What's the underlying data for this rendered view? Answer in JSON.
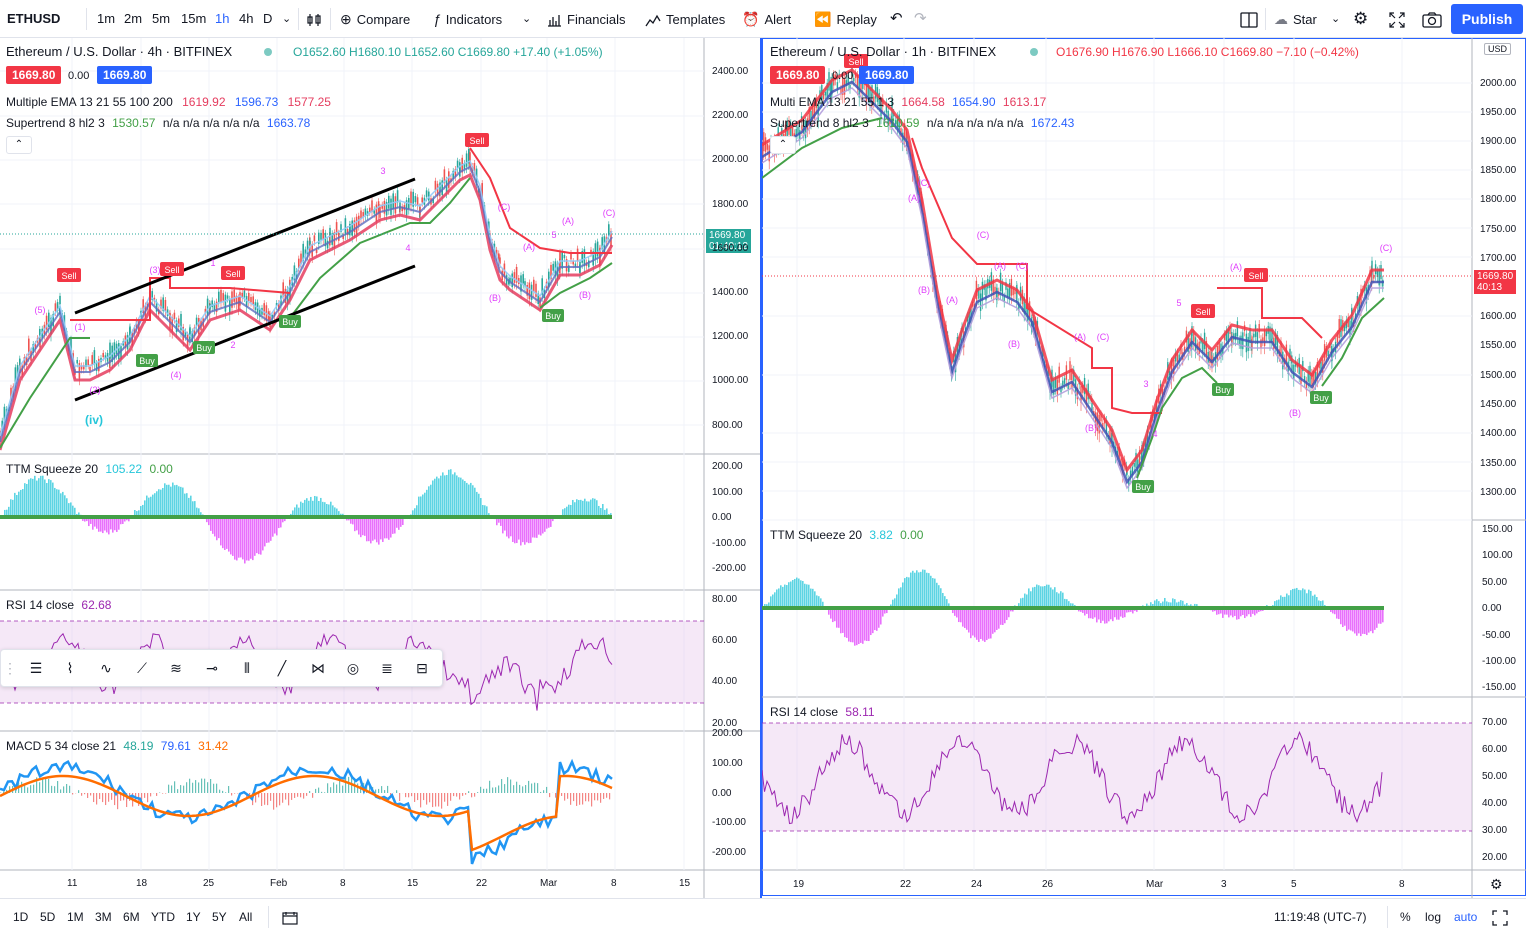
{
  "toolbar": {
    "symbol": "ETHUSD",
    "intervals": [
      "1m",
      "2m",
      "5m",
      "15m",
      "1h",
      "4h",
      "D"
    ],
    "active_interval": "1h",
    "compare": "Compare",
    "indicators": "Indicators",
    "financials": "Financials",
    "templates": "Templates",
    "alert": "Alert",
    "replay": "Replay",
    "star": "Star",
    "publish": "Publish"
  },
  "left_chart": {
    "title": "Ethereum / U.S. Dollar · 4h · BITFINEX",
    "ohlc": "O1652.60 H1680.10 L1652.60 C1669.80 +17.40 (+1.05%)",
    "badge_sell": "1669.80",
    "badge_spread": "0.00",
    "badge_buy": "1669.80",
    "ema_name": "Multiple EMA 13 21 55 100 200",
    "ema_v1": "1619.92",
    "ema_v2": "1596.73",
    "ema_v3": "1577.25",
    "st_name": "Supertrend 8 hl2 3",
    "st_v1": "1530.57",
    "st_na": "n/a n/a n/a n/a n/a",
    "st_v2": "1663.78",
    "price_ticks": [
      "2400.00",
      "2200.00",
      "2000.00",
      "1800.00",
      "1600.00",
      "1400.00",
      "1200.00",
      "1000.00",
      "800.00"
    ],
    "last_price": "1669.80",
    "countdown": "01:40:12",
    "ttm_name": "TTM Squeeze 20",
    "ttm_v1": "105.22",
    "ttm_v2": "0.00",
    "ttm_ticks": [
      "200.00",
      "100.00",
      "0.00",
      "-100.00",
      "-200.00"
    ],
    "rsi_name": "RSI 14 close",
    "rsi_v": "62.68",
    "rsi_ticks": [
      "80.00",
      "60.00",
      "40.00",
      "20.00"
    ],
    "macd_name": "MACD 5 34 close 21",
    "macd_v1": "48.19",
    "macd_v2": "79.61",
    "macd_v3": "31.42",
    "macd_ticks": [
      "200.00",
      "100.00",
      "0.00",
      "-100.00",
      "-200.00"
    ],
    "time_ticks": [
      "11",
      "18",
      "25",
      "Feb",
      "8",
      "15",
      "22",
      "Mar",
      "8",
      "15"
    ],
    "wave_labels": [
      "(5)",
      "(1)",
      "(2)",
      "(3)",
      "(4)",
      "(iv)",
      "1",
      "2",
      "3",
      "4",
      "5",
      "(A)",
      "(B)",
      "(C)",
      "Sell",
      "Buy"
    ]
  },
  "right_chart": {
    "title": "Ethereum / U.S. Dollar · 1h · BITFINEX",
    "ohlc": "O1676.90 H1676.90 L1666.10 C1669.80 −7.10 (−0.42%)",
    "badge_sell": "1669.80",
    "badge_spread": "0.00",
    "badge_buy": "1669.80",
    "ema_name": "Multi EMA 13 21 55 1 3",
    "ema_v1": "1664.58",
    "ema_v2": "1654.90",
    "ema_v3": "1613.17",
    "st_name": "Supertrend 8 hl2 3",
    "st_v1": "1610.59",
    "st_na": "n/a n/a n/a n/a n/a",
    "st_v2": "1672.43",
    "currency": "USD",
    "price_ticks": [
      "2000.00",
      "1950.00",
      "1900.00",
      "1850.00",
      "1800.00",
      "1750.00",
      "1700.00",
      "1600.00",
      "1550.00",
      "1500.00",
      "1450.00",
      "1400.00",
      "1350.00",
      "1300.00"
    ],
    "last_price": "1669.80",
    "countdown": "40:13",
    "ttm_name": "TTM Squeeze 20",
    "ttm_v1": "3.82",
    "ttm_v2": "0.00",
    "ttm_ticks": [
      "150.00",
      "100.00",
      "50.00",
      "0.00",
      "-50.00",
      "-100.00",
      "-150.00"
    ],
    "rsi_name": "RSI 14 close",
    "rsi_v": "58.11",
    "rsi_ticks": [
      "70.00",
      "60.00",
      "50.00",
      "40.00",
      "30.00",
      "20.00"
    ],
    "time_ticks": [
      "19",
      "22",
      "24",
      "26",
      "Mar",
      "3",
      "5",
      "8"
    ]
  },
  "bottombar": {
    "ranges": [
      "1D",
      "5D",
      "1M",
      "3M",
      "6M",
      "YTD",
      "1Y",
      "5Y",
      "All"
    ],
    "clock": "11:19:48 (UTC-7)",
    "percent": "%",
    "log": "log",
    "auto": "auto"
  },
  "colors": {
    "accent": "#2962ff",
    "sell": "#f23645",
    "buy": "#26a69a",
    "ema_red": "#e53d5f",
    "ema_blue": "#2962ff",
    "supertrend_green": "#43a047",
    "wave_pink": "#e040fb"
  }
}
